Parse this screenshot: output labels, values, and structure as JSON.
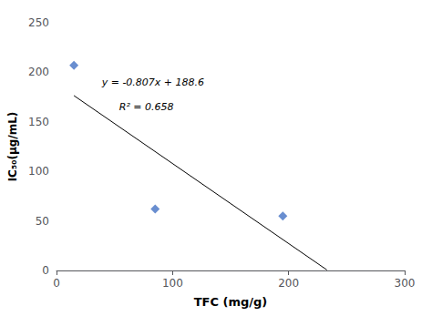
{
  "chart_data": {
    "type": "scatter",
    "x": [
      15,
      85,
      195
    ],
    "values": [
      207,
      62,
      55
    ],
    "color": "#4472C4",
    "marker": "diamond",
    "xlabel": "TFC (mg/g)",
    "ylabel": "IC₅₀(μg/mL)",
    "xlim": [
      0,
      300
    ],
    "ylim": [
      0,
      250
    ],
    "xticks": [
      0,
      100,
      200,
      300
    ],
    "yticks": [
      0,
      50,
      100,
      150,
      200,
      250
    ],
    "grid": false,
    "trendline": {
      "x": [
        15,
        233
      ],
      "y": [
        176.495,
        0.569
      ],
      "color": "#000000"
    },
    "annotations": [
      "y = -0.807x + 188.6",
      "R² = 0.658"
    ]
  }
}
